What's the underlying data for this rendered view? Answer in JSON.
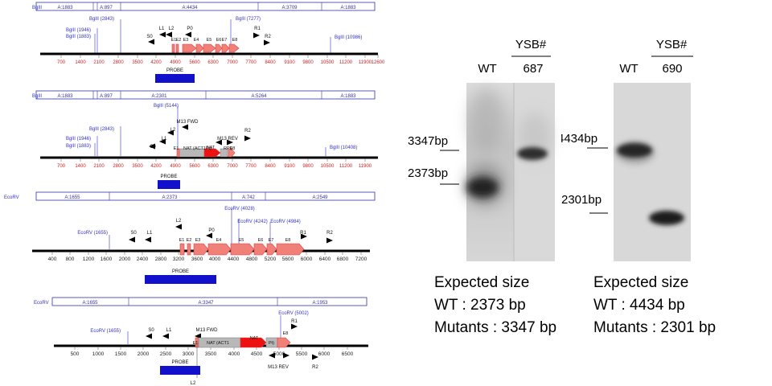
{
  "maps": [
    {
      "enzyme": "BglII",
      "fragments": [
        "A:1883",
        "A:897",
        "A:4434",
        "A:3709",
        "A:1883"
      ],
      "ticks": [
        "700",
        "1400",
        "2100",
        "2800",
        "3500",
        "4200",
        "4900",
        "5600",
        "6300",
        "7000",
        "7700",
        "8400",
        "9100",
        "9800",
        "10500",
        "11200",
        "11900",
        "12600"
      ],
      "sites": [
        "BglII (1883)",
        "BglII (1946)",
        "BglII (2843)",
        "BglII (7277)",
        "BglII (10986)"
      ],
      "primers": [
        "S0",
        "L1",
        "L2",
        "P0",
        "R1",
        "R2"
      ],
      "exons": [
        "E1",
        "E2",
        "E3",
        "E4",
        "E5",
        "E6",
        "E7",
        "E8"
      ],
      "probe": "PROBE"
    },
    {
      "enzyme": "BglII",
      "fragments": [
        "A:1883",
        "A:897",
        "A:2301",
        "A:5264",
        "A:1883"
      ],
      "ticks": [
        "700",
        "1400",
        "2100",
        "2800",
        "3500",
        "4200",
        "4900",
        "5600",
        "6300",
        "7000",
        "7700",
        "8400",
        "9100",
        "9800",
        "10500",
        "11200",
        "11900"
      ],
      "sites": [
        "BglII (1883)",
        "BglII (1946)",
        "BglII (2843)",
        "BglII (5144)",
        "BglII (10408)"
      ],
      "primers": [
        "S0",
        "L1",
        "L2",
        "M13 FWD",
        "M13 REV",
        "R1",
        "R2"
      ],
      "exons": [
        "E1",
        "E8"
      ],
      "nat": "NAT (ACT1Pt)",
      "nat_inner": "NAT",
      "trpt": "RPt)",
      "probe": "PROBE"
    },
    {
      "enzyme": "EcoRV",
      "fragments": [
        "A:1655",
        "A:2373",
        "A:742",
        "A:2549"
      ],
      "ticks": [
        "400",
        "800",
        "1200",
        "1600",
        "2000",
        "2400",
        "2800",
        "3200",
        "3600",
        "4000",
        "4400",
        "4800",
        "5200",
        "5600",
        "6000",
        "6400",
        "6800",
        "7200"
      ],
      "sites": [
        "EcoRV (1655)",
        "EcoRV (4028)",
        "EcoRV (4242)",
        "EcoRV (4984)"
      ],
      "primers": [
        "S0",
        "L1",
        "L2",
        "P0",
        "R1",
        "R2"
      ],
      "exons": [
        "E1",
        "E2",
        "E3",
        "E4",
        "E5",
        "E6",
        "E7",
        "E8"
      ],
      "probe": "PROBE"
    },
    {
      "enzyme": "EcoRV",
      "fragments": [
        "A:1655",
        "A:3347",
        "A:1953"
      ],
      "ticks": [
        "500",
        "1000",
        "1500",
        "2000",
        "2500",
        "3000",
        "3500",
        "4000",
        "4500",
        "5000",
        "5500",
        "6000",
        "6500"
      ],
      "sites": [
        "EcoRV (1655)",
        "EcoRV (5002)"
      ],
      "primers": [
        "S0",
        "L1",
        "M13 FWD",
        "R1",
        "M13 REV",
        "R2",
        "L2"
      ],
      "exons": [
        "E1",
        "E8"
      ],
      "nat": "NAT (ACT1",
      "nat_inner": "NAT",
      "trpt": "Pt)",
      "probe": "PROBE"
    }
  ],
  "blot1": {
    "group_label": "YSB#",
    "lanes": [
      "WT",
      "687"
    ],
    "markers": [
      "3347bp",
      "2373bp"
    ]
  },
  "blot2": {
    "group_label": "YSB#",
    "lanes": [
      "WT",
      "690"
    ],
    "markers": [
      "4434bp",
      "2301bp"
    ]
  },
  "expected1": [
    "Expected size",
    "WT : 2373 bp",
    "Mutants : 3347 bp"
  ],
  "expected2": [
    "Expected size",
    "WT : 4434 bp",
    "Mutants : 2301 bp"
  ],
  "colors": {
    "exon": "#f08078",
    "marker": "#e04040",
    "nat": "#ee1111",
    "cassette": "#b8b8b8",
    "probe": "#1111cc",
    "site": "#3333cc"
  }
}
